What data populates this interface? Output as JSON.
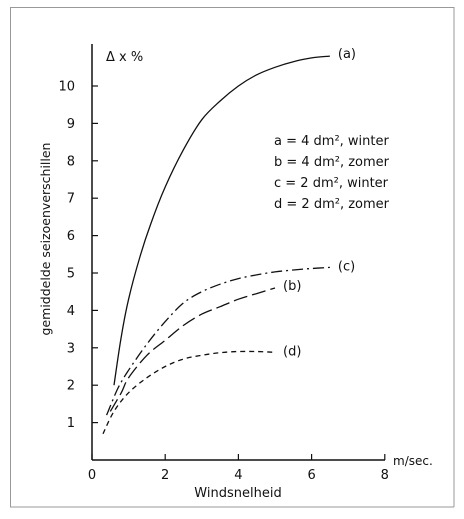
{
  "chart_data": {
    "type": "line",
    "title": "",
    "xlabel": "Windsnelheid",
    "x_unit": "m/sec.",
    "ylabel": "gemiddelde seizoenverschillen",
    "y_unit": "Δ x %",
    "xlim": [
      0,
      8
    ],
    "ylim": [
      0,
      11
    ],
    "x_ticks": [
      "0",
      "2",
      "4",
      "6",
      "8"
    ],
    "y_ticks": [
      "1",
      "2",
      "3",
      "4",
      "5",
      "6",
      "7",
      "8",
      "9",
      "10"
    ],
    "grid": false,
    "legend": {
      "placement": "right",
      "entries": [
        {
          "key": "a",
          "text": "a = 4 dm², winter"
        },
        {
          "key": "b",
          "text": "b = 4 dm², zomer"
        },
        {
          "key": "c",
          "text": "c = 2 dm², winter"
        },
        {
          "key": "d",
          "text": "d = 2 dm², zomer"
        }
      ]
    },
    "series": [
      {
        "name": "(a)",
        "style": "solid",
        "x": [
          0.6,
          0.8,
          1.0,
          1.3,
          1.6,
          2.0,
          2.5,
          3.0,
          3.5,
          4.0,
          4.5,
          5.0,
          5.5,
          6.0,
          6.5
        ],
        "y": [
          2.0,
          3.3,
          4.3,
          5.4,
          6.3,
          7.3,
          8.3,
          9.1,
          9.6,
          10.0,
          10.3,
          10.5,
          10.65,
          10.75,
          10.8
        ]
      },
      {
        "name": "(b)",
        "style": "long-dash",
        "x": [
          0.5,
          0.8,
          1.0,
          1.5,
          2.0,
          2.5,
          3.0,
          3.5,
          4.0,
          4.5,
          5.0
        ],
        "y": [
          1.3,
          1.8,
          2.2,
          2.8,
          3.2,
          3.6,
          3.9,
          4.1,
          4.3,
          4.45,
          4.6
        ]
      },
      {
        "name": "(c)",
        "style": "dash-dot",
        "x": [
          0.4,
          0.7,
          1.0,
          1.5,
          2.0,
          2.5,
          3.0,
          3.5,
          4.0,
          4.5,
          5.0,
          5.5,
          6.0,
          6.5
        ],
        "y": [
          1.2,
          1.9,
          2.4,
          3.1,
          3.7,
          4.2,
          4.5,
          4.7,
          4.85,
          4.95,
          5.03,
          5.08,
          5.12,
          5.15
        ]
      },
      {
        "name": "(d)",
        "style": "short-dash",
        "x": [
          0.3,
          0.6,
          1.0,
          1.5,
          2.0,
          2.5,
          3.0,
          3.5,
          4.0,
          4.5,
          5.0
        ],
        "y": [
          0.7,
          1.3,
          1.8,
          2.2,
          2.5,
          2.7,
          2.8,
          2.87,
          2.9,
          2.9,
          2.88
        ]
      }
    ]
  }
}
